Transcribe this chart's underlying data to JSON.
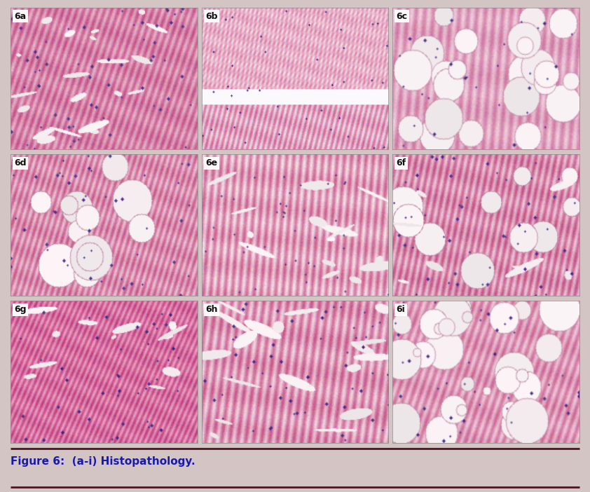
{
  "title": "Figure 6:  (a-i) Histopathology.",
  "background_color": "#d4c5c5",
  "figure_bg": "#d4c5c5",
  "panel_labels": [
    "6a",
    "6b",
    "6c",
    "6d",
    "6e",
    "6f",
    "6g",
    "6h",
    "6i"
  ],
  "grid_rows": 3,
  "grid_cols": 3,
  "caption_text": "Figure 6:  (a-i) Histopathology.",
  "caption_fontsize": 11,
  "top_line_color": "#4a1520",
  "bottom_line_color": "#4a1520",
  "panel_label_fontsize": 9,
  "panel_label_color": "#111111",
  "panel_label_bg": "white"
}
